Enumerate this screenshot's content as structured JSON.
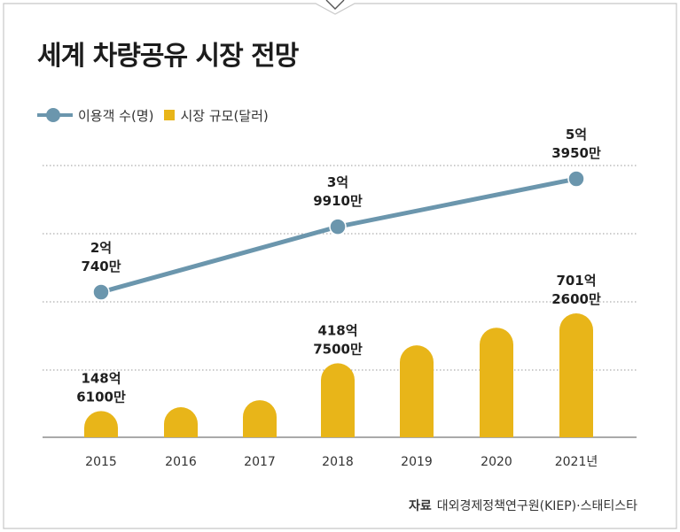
{
  "title": "세계 차량공유 시장 전망",
  "legend": {
    "line_label": "이용객 수(명)",
    "bar_label": "시장 규모(달러)"
  },
  "source": {
    "label": "자료",
    "text": "대외경제정책연구원(KIEP)·스태티스타"
  },
  "colors": {
    "line": "#6b96ad",
    "bar": "#e8b519",
    "grid": "#9a9a9a"
  },
  "chart_data": {
    "type": "bar",
    "categories": [
      "2015",
      "2016",
      "2017",
      "2018",
      "2019",
      "2020",
      "2021년"
    ],
    "series": [
      {
        "name": "이용객 수(명)",
        "type": "line",
        "x": [
          "2015",
          "2018",
          "2021년"
        ],
        "values": [
          207400000,
          399100000,
          539500000
        ],
        "labels": [
          [
            "2억",
            "740만"
          ],
          [
            "3억",
            "9910만"
          ],
          [
            "5억",
            "3950만"
          ]
        ]
      },
      {
        "name": "시장 규모(달러)",
        "type": "bar",
        "values": [
          14861000000,
          17000000000,
          21000000000,
          41875000000,
          52000000000,
          62000000000,
          70126000000
        ],
        "labels": [
          [
            "148억",
            "6100만"
          ],
          null,
          null,
          [
            "418억",
            "7500만"
          ],
          null,
          null,
          [
            "701억",
            "2600만"
          ]
        ]
      }
    ],
    "grid": true
  }
}
